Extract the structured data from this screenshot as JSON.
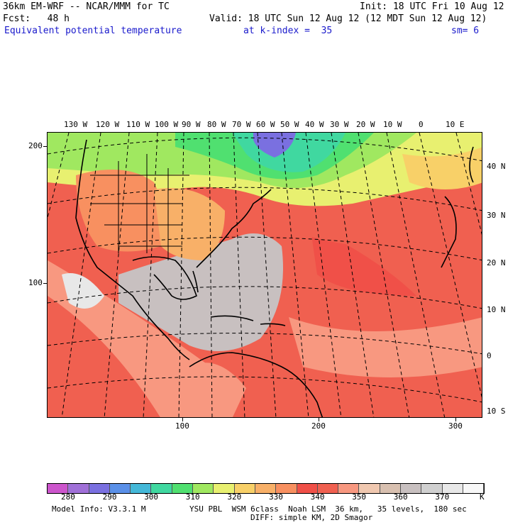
{
  "header": {
    "line1_left": "36km EM-WRF -- NCAR/MMM for TC",
    "line1_right": "Init: 18 UTC Fri 10 Aug 12",
    "line2_left": "Fcst:   48 h",
    "line2_right": "Valid: 18 UTC Sun 12 Aug 12 (12 MDT Sun 12 Aug 12)",
    "field": "Equivalent potential temperature",
    "level": "at k-index =  35",
    "smoothing": "sm= 6"
  },
  "map": {
    "longitude_labels": [
      "130 W",
      "120 W",
      "110 W",
      "100 W",
      "90 W",
      "80 W",
      "70 W",
      "60 W",
      "50 W",
      "40 W",
      "30 W",
      "20 W",
      "10 W",
      "0",
      "10 E"
    ],
    "latitude_labels": [
      "40 N",
      "30 N",
      "20 N",
      "10 N",
      "0",
      "10 S"
    ],
    "grid_y_labels": [
      "200",
      "100"
    ],
    "grid_x_labels": [
      "100",
      "200",
      "300"
    ]
  },
  "legend": {
    "colors": [
      "#cc55cc",
      "#a070d8",
      "#7a70e0",
      "#5a90e8",
      "#44b8d8",
      "#40d8a0",
      "#50e070",
      "#a0e860",
      "#e8f070",
      "#f8d068",
      "#f8b068",
      "#f89060",
      "#f05048",
      "#f06050",
      "#f89880",
      "#f0c8b0",
      "#d8c0b0",
      "#c8c0c0",
      "#d0d0d0",
      "#e8e8e8",
      "#f8f8f8"
    ],
    "tick_labels": [
      "280",
      "290",
      "300",
      "310",
      "320",
      "330",
      "340",
      "350",
      "360",
      "370"
    ],
    "unit": "K"
  },
  "footer": {
    "line1_left": "Model Info: V3.3.1 M",
    "line1_right": "YSU PBL  WSM 6class  Noah LSM  36 km,   35 levels,  180 sec",
    "line2": "DIFF: simple KM, 2D Smagor"
  }
}
